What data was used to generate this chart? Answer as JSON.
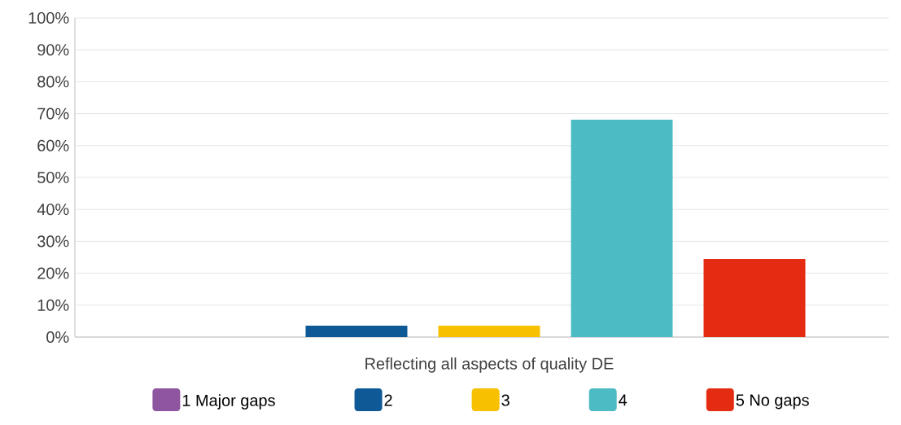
{
  "chart_data": {
    "type": "bar",
    "categories": [
      "Reflecting all aspects of quality DE"
    ],
    "series": [
      {
        "name": "1  Major gaps",
        "color": "#8e55a0",
        "values": [
          0
        ]
      },
      {
        "name": "2",
        "color": "#0f5a96",
        "values": [
          3.6
        ]
      },
      {
        "name": "3",
        "color": "#f7c000",
        "values": [
          3.6
        ]
      },
      {
        "name": "4",
        "color": "#4dbbc4",
        "values": [
          68.1
        ]
      },
      {
        "name": "5  No gaps",
        "color": "#e42c13",
        "values": [
          24.5
        ]
      }
    ],
    "ylim": [
      0,
      100
    ],
    "yticks": [
      {
        "value": 0,
        "label": "0%"
      },
      {
        "value": 10,
        "label": "10%"
      },
      {
        "value": 20,
        "label": "20%"
      },
      {
        "value": 30,
        "label": "30%"
      },
      {
        "value": 40,
        "label": "40%"
      },
      {
        "value": 50,
        "label": "50%"
      },
      {
        "value": 60,
        "label": "60%"
      },
      {
        "value": 70,
        "label": "70%"
      },
      {
        "value": 80,
        "label": "80%"
      },
      {
        "value": 90,
        "label": "90%"
      },
      {
        "value": 100,
        "label": "100%"
      }
    ],
    "grid": "y",
    "legend": "bottom"
  }
}
